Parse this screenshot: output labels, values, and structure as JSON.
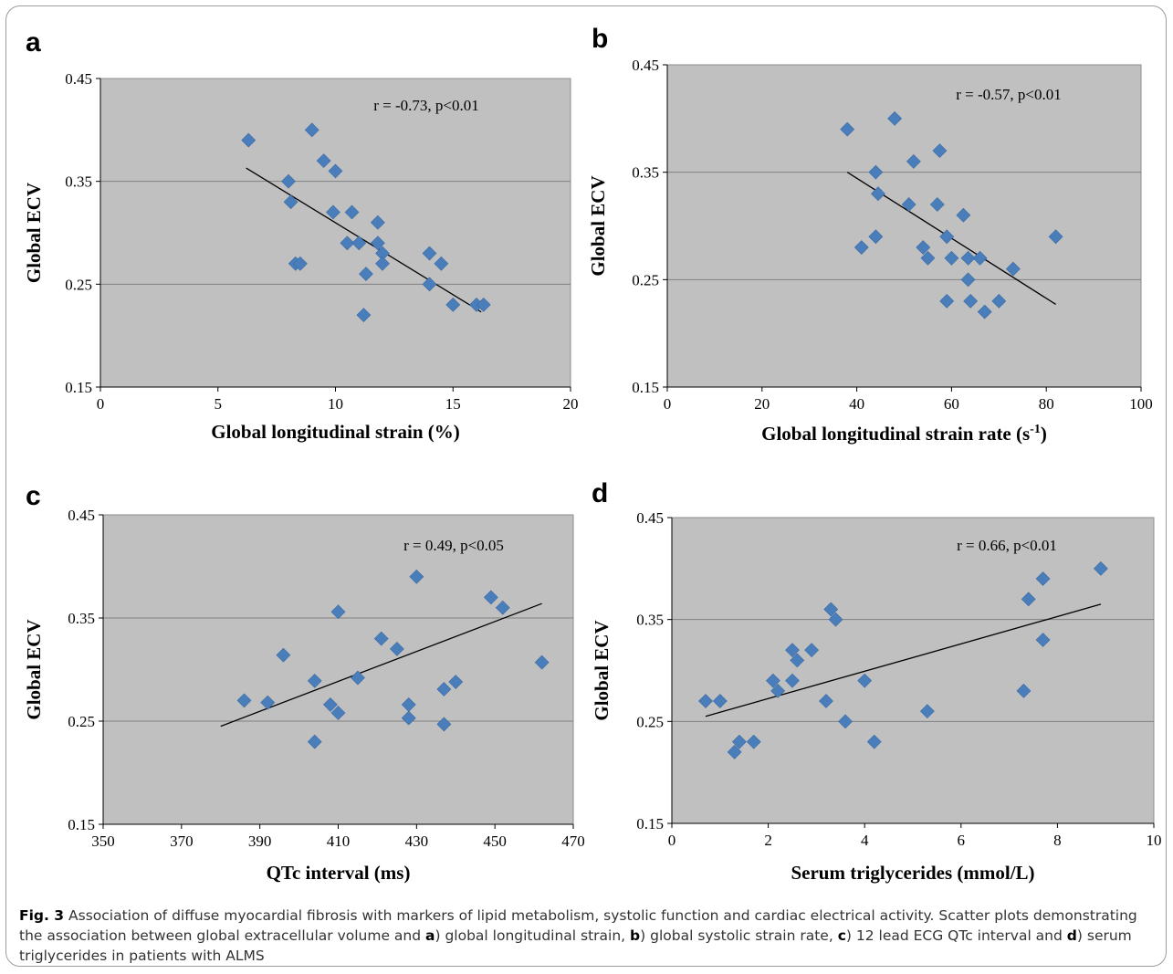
{
  "caption": {
    "fig_label": "Fig. 3",
    "part1": "Association of diffuse myocardial fibrosis with markers of lipid metabolism, systolic function and cardiac electrical activity. Scatter plots demonstrating the association between global extracellular volume and ",
    "ref_a": "a",
    "part2": ") global longitudinal strain, ",
    "ref_b": "b",
    "part3": ") global systolic strain rate, ",
    "ref_c": "c",
    "part4": ") 12 lead ECG QTc interval and ",
    "ref_d": "d",
    "part5": ") serum triglycerides in patients with ALMS"
  },
  "colors": {
    "plot_bg": "#c0c0c0",
    "marker": "#4a7ebb",
    "gridline": "#808080",
    "trendline": "#000000"
  },
  "chart_data": [
    {
      "panel": "a",
      "type": "scatter",
      "xlabel": "Global longitudinal strain (%)",
      "ylabel": "Global ECV",
      "annotation": "r = -0.73, p<0.01",
      "xlim": [
        0,
        20
      ],
      "ylim": [
        0.15,
        0.45
      ],
      "xticks": [
        "0",
        "5",
        "10",
        "15",
        "20"
      ],
      "yticks": [
        "0.15",
        "0.25",
        "0.35",
        "0.45"
      ],
      "grid": "horizontal",
      "points": [
        [
          6.3,
          0.39
        ],
        [
          9.0,
          0.4
        ],
        [
          8.0,
          0.35
        ],
        [
          8.1,
          0.33
        ],
        [
          8.3,
          0.27
        ],
        [
          8.5,
          0.27
        ],
        [
          9.5,
          0.37
        ],
        [
          10.0,
          0.36
        ],
        [
          9.9,
          0.32
        ],
        [
          10.7,
          0.32
        ],
        [
          10.5,
          0.29
        ],
        [
          11.0,
          0.29
        ],
        [
          11.8,
          0.31
        ],
        [
          11.8,
          0.29
        ],
        [
          12.0,
          0.28
        ],
        [
          12.0,
          0.27
        ],
        [
          11.3,
          0.26
        ],
        [
          11.2,
          0.22
        ],
        [
          14.0,
          0.28
        ],
        [
          14.5,
          0.27
        ],
        [
          14.0,
          0.25
        ],
        [
          15.0,
          0.23
        ],
        [
          16.0,
          0.23
        ],
        [
          16.3,
          0.23
        ]
      ],
      "trendline": [
        [
          6.2,
          0.363
        ],
        [
          16.2,
          0.223
        ]
      ]
    },
    {
      "panel": "b",
      "type": "scatter",
      "xlabel": "Global longitudinal strain rate (s",
      "xlabel_sup": "-1",
      "xlabel_end": ")",
      "ylabel": "Global ECV",
      "annotation": "r = -0.57, p<0.01",
      "xlim": [
        0,
        100
      ],
      "ylim": [
        0.15,
        0.45
      ],
      "xticks": [
        "0",
        "20",
        "40",
        "60",
        "80",
        "100"
      ],
      "yticks": [
        "0.15",
        "0.25",
        "0.35",
        "0.45"
      ],
      "grid": "horizontal",
      "points": [
        [
          38,
          0.39
        ],
        [
          48,
          0.4
        ],
        [
          44,
          0.35
        ],
        [
          44.5,
          0.33
        ],
        [
          41,
          0.28
        ],
        [
          44,
          0.29
        ],
        [
          52,
          0.36
        ],
        [
          51,
          0.32
        ],
        [
          57.5,
          0.37
        ],
        [
          57,
          0.32
        ],
        [
          54,
          0.28
        ],
        [
          55,
          0.27
        ],
        [
          59,
          0.29
        ],
        [
          60,
          0.27
        ],
        [
          59,
          0.23
        ],
        [
          62.5,
          0.31
        ],
        [
          63.5,
          0.27
        ],
        [
          63.5,
          0.25
        ],
        [
          64,
          0.23
        ],
        [
          66,
          0.27
        ],
        [
          67,
          0.22
        ],
        [
          70,
          0.23
        ],
        [
          73,
          0.26
        ],
        [
          82,
          0.29
        ]
      ],
      "trendline": [
        [
          38,
          0.35
        ],
        [
          82,
          0.227
        ]
      ]
    },
    {
      "panel": "c",
      "type": "scatter",
      "xlabel": "QTc interval (ms)",
      "ylabel": "Global ECV",
      "annotation": "r = 0.49, p<0.05",
      "xlim": [
        350,
        470
      ],
      "ylim": [
        0.15,
        0.45
      ],
      "xticks": [
        "350",
        "370",
        "390",
        "410",
        "430",
        "450",
        "470"
      ],
      "yticks": [
        "0.15",
        "0.25",
        "0.35",
        "0.45"
      ],
      "grid": "horizontal",
      "points": [
        [
          386,
          0.27
        ],
        [
          392,
          0.268
        ],
        [
          396,
          0.314
        ],
        [
          404,
          0.289
        ],
        [
          404,
          0.23
        ],
        [
          408,
          0.266
        ],
        [
          410,
          0.356
        ],
        [
          410,
          0.258
        ],
        [
          415,
          0.292
        ],
        [
          421,
          0.33
        ],
        [
          425,
          0.32
        ],
        [
          428,
          0.266
        ],
        [
          428,
          0.253
        ],
        [
          430,
          0.39
        ],
        [
          437,
          0.281
        ],
        [
          437,
          0.247
        ],
        [
          440,
          0.288
        ],
        [
          449,
          0.37
        ],
        [
          452,
          0.36
        ],
        [
          462,
          0.307
        ]
      ],
      "trendline": [
        [
          380,
          0.245
        ],
        [
          462,
          0.364
        ]
      ]
    },
    {
      "panel": "d",
      "type": "scatter",
      "xlabel": "Serum triglycerides (mmol/L)",
      "ylabel": "Global ECV",
      "annotation": "r = 0.66, p<0.01",
      "xlim": [
        0,
        10
      ],
      "ylim": [
        0.15,
        0.45
      ],
      "xticks": [
        "0",
        "2",
        "4",
        "6",
        "8",
        "10"
      ],
      "yticks": [
        "0.15",
        "0.25",
        "0.35",
        "0.45"
      ],
      "grid": "horizontal",
      "points": [
        [
          0.7,
          0.27
        ],
        [
          1.0,
          0.27
        ],
        [
          1.3,
          0.22
        ],
        [
          1.4,
          0.23
        ],
        [
          1.7,
          0.23
        ],
        [
          2.1,
          0.29
        ],
        [
          2.2,
          0.28
        ],
        [
          2.5,
          0.32
        ],
        [
          2.5,
          0.29
        ],
        [
          2.6,
          0.31
        ],
        [
          2.9,
          0.32
        ],
        [
          3.2,
          0.27
        ],
        [
          3.3,
          0.36
        ],
        [
          3.4,
          0.35
        ],
        [
          3.6,
          0.25
        ],
        [
          4.0,
          0.29
        ],
        [
          4.2,
          0.23
        ],
        [
          5.3,
          0.26
        ],
        [
          7.3,
          0.28
        ],
        [
          7.4,
          0.37
        ],
        [
          7.7,
          0.39
        ],
        [
          7.7,
          0.33
        ],
        [
          8.9,
          0.4
        ]
      ],
      "trendline": [
        [
          0.7,
          0.255
        ],
        [
          8.9,
          0.365
        ]
      ]
    }
  ]
}
